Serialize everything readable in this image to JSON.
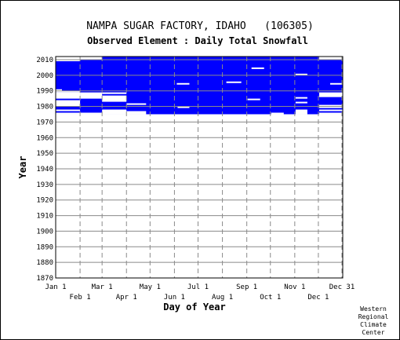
{
  "chart_data": {
    "type": "heatmap",
    "title": "NAMPA SUGAR FACTORY, IDAHO   (106305)",
    "subtitle": "Observed Element : Daily Total Snowfall",
    "xlabel": "Day of Year",
    "ylabel": "Year",
    "xlim": [
      1,
      366
    ],
    "ylim": [
      1870,
      2012
    ],
    "x_ticks_upper": [
      {
        "label": "Jan 1",
        "day": 1
      },
      {
        "label": "Mar 1",
        "day": 60
      },
      {
        "label": "May 1",
        "day": 121
      },
      {
        "label": "Jul 1",
        "day": 182
      },
      {
        "label": "Sep 1",
        "day": 244
      },
      {
        "label": "Nov 1",
        "day": 305
      },
      {
        "label": "Dec 31",
        "day": 365
      }
    ],
    "x_ticks_lower": [
      {
        "label": "Feb 1",
        "day": 32
      },
      {
        "label": "Apr 1",
        "day": 91
      },
      {
        "label": "Jun 1",
        "day": 152
      },
      {
        "label": "Aug 1",
        "day": 213
      },
      {
        "label": "Oct 1",
        "day": 274
      },
      {
        "label": "Dec 1",
        "day": 335
      }
    ],
    "y_ticks": [
      2010,
      2000,
      1990,
      1980,
      1970,
      1960,
      1950,
      1940,
      1930,
      1920,
      1910,
      1900,
      1890,
      1880,
      1870
    ],
    "grid": true,
    "fill_color": "#0000ff",
    "record": {
      "start_year": 1975,
      "end_year": 2011
    },
    "gaps": [
      {
        "from_day": 1,
        "to_day": 31,
        "from_year": 1975,
        "to_year": 1975
      },
      {
        "from_day": 1,
        "to_day": 31,
        "from_year": 1977,
        "to_year": 1977
      },
      {
        "from_day": 1,
        "to_day": 31,
        "from_year": 1980,
        "to_year": 1983
      },
      {
        "from_day": 1,
        "to_day": 31,
        "from_year": 1985,
        "to_year": 1988
      },
      {
        "from_day": 1,
        "to_day": 31,
        "from_year": 1989,
        "to_year": 1989
      },
      {
        "from_day": 1,
        "to_day": 31,
        "from_year": 2009,
        "to_year": 2011
      },
      {
        "from_day": 1,
        "to_day": 8,
        "from_year": 1990,
        "to_year": 1990
      },
      {
        "from_day": 32,
        "to_day": 59,
        "from_year": 1975,
        "to_year": 1975
      },
      {
        "from_day": 32,
        "to_day": 59,
        "from_year": 1985,
        "to_year": 1988
      },
      {
        "from_day": 32,
        "to_day": 59,
        "from_year": 2010,
        "to_year": 2011
      },
      {
        "from_day": 60,
        "to_day": 90,
        "from_year": 1975,
        "to_year": 1977
      },
      {
        "from_day": 60,
        "to_day": 90,
        "from_year": 1983,
        "to_year": 1986
      },
      {
        "from_day": 60,
        "to_day": 90,
        "from_year": 1988,
        "to_year": 1988
      },
      {
        "from_day": 91,
        "to_day": 115,
        "from_year": 1975,
        "to_year": 1976
      },
      {
        "from_day": 91,
        "to_day": 115,
        "from_year": 1981,
        "to_year": 1981
      },
      {
        "from_day": 155,
        "to_day": 170,
        "from_year": 1994,
        "to_year": 1994
      },
      {
        "from_day": 156,
        "to_day": 170,
        "from_year": 1979,
        "to_year": 1979
      },
      {
        "from_day": 250,
        "to_day": 265,
        "from_year": 2004,
        "to_year": 2004
      },
      {
        "from_day": 245,
        "to_day": 260,
        "from_year": 1984,
        "to_year": 1984
      },
      {
        "from_day": 218,
        "to_day": 236,
        "from_year": 1995,
        "to_year": 1995
      },
      {
        "from_day": 275,
        "to_day": 290,
        "from_year": 1975,
        "to_year": 1975
      },
      {
        "from_day": 306,
        "to_day": 320,
        "from_year": 1975,
        "to_year": 1977
      },
      {
        "from_day": 306,
        "to_day": 320,
        "from_year": 1982,
        "to_year": 1982
      },
      {
        "from_day": 306,
        "to_day": 320,
        "from_year": 1985,
        "to_year": 1985
      },
      {
        "from_day": 306,
        "to_day": 320,
        "from_year": 2000,
        "to_year": 2000
      },
      {
        "from_day": 336,
        "to_day": 366,
        "from_year": 1975,
        "to_year": 1975
      },
      {
        "from_day": 336,
        "to_day": 366,
        "from_year": 1977,
        "to_year": 1977
      },
      {
        "from_day": 336,
        "to_day": 366,
        "from_year": 1979,
        "to_year": 1980
      },
      {
        "from_day": 336,
        "to_day": 366,
        "from_year": 1986,
        "to_year": 1988
      },
      {
        "from_day": 336,
        "to_day": 366,
        "from_year": 2010,
        "to_year": 2011
      },
      {
        "from_day": 350,
        "to_day": 366,
        "from_year": 1994,
        "to_year": 1994
      }
    ]
  },
  "credit": {
    "line1": "Western",
    "line2": "Regional",
    "line3": "Climate",
    "line4": "Center"
  }
}
